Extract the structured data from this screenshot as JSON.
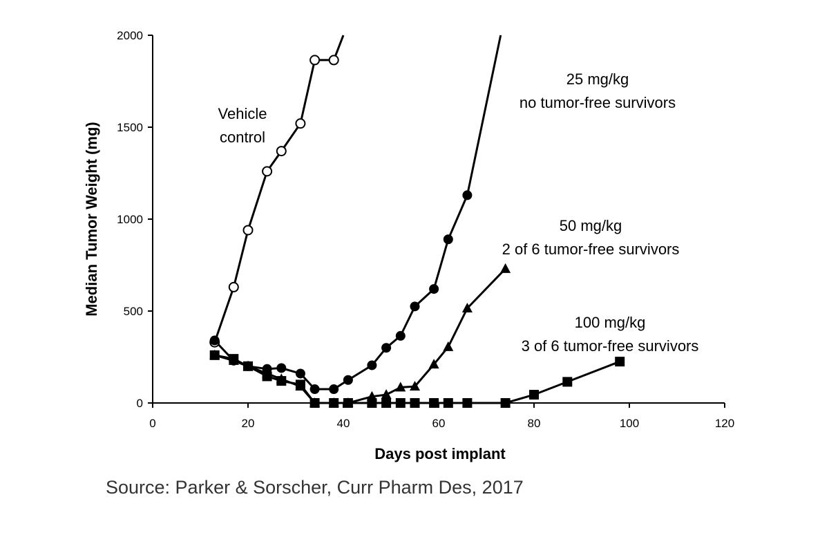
{
  "chart_data": {
    "type": "line",
    "xlabel": "Days  post implant",
    "ylabel": "Median Tumor Weight (mg)",
    "xlim": [
      0,
      120
    ],
    "ylim": [
      0,
      2000
    ],
    "xticks": [
      "0",
      "20",
      "40",
      "60",
      "80",
      "100",
      "120"
    ],
    "yticks": [
      "0",
      "500",
      "1000",
      "1500",
      "2000"
    ],
    "grid": false,
    "series": [
      {
        "marker": "open-circle",
        "x": [
          13,
          17,
          20,
          24,
          27,
          31,
          34,
          38,
          40
        ],
        "y": [
          330,
          630,
          940,
          1260,
          1370,
          1520,
          1865,
          1865,
          2000
        ]
      },
      {
        "marker": "filled-circle",
        "x": [
          13,
          17,
          20,
          24,
          27,
          31,
          34,
          38,
          41,
          46,
          49,
          52,
          55,
          59,
          62,
          66,
          73
        ],
        "y": [
          340,
          230,
          200,
          185,
          190,
          160,
          75,
          75,
          125,
          205,
          300,
          365,
          525,
          620,
          890,
          1130,
          2000
        ]
      },
      {
        "marker": "filled-triangle",
        "x": [
          13,
          17,
          20,
          24,
          27,
          31,
          34,
          38,
          41,
          46,
          49,
          52,
          55,
          59,
          62,
          66,
          74
        ],
        "y": [
          260,
          230,
          200,
          160,
          130,
          90,
          0,
          0,
          0,
          35,
          45,
          85,
          90,
          210,
          305,
          515,
          730
        ]
      },
      {
        "marker": "filled-square",
        "x": [
          13,
          17,
          20,
          24,
          27,
          31,
          34,
          38,
          41,
          46,
          49,
          52,
          55,
          59,
          62,
          66,
          74,
          80,
          87,
          98
        ],
        "y": [
          260,
          240,
          200,
          145,
          120,
          100,
          0,
          0,
          0,
          0,
          0,
          0,
          0,
          0,
          0,
          0,
          0,
          45,
          115,
          225
        ]
      }
    ],
    "annotations": [
      {
        "lines": [
          "Vehicle",
          "control"
        ]
      },
      {
        "lines": [
          "25 mg/kg",
          "no tumor-free survivors"
        ]
      },
      {
        "lines": [
          "50 mg/kg",
          "2 of 6 tumor-free survivors"
        ]
      },
      {
        "lines": [
          "100 mg/kg",
          "3 of 6 tumor-free survivors"
        ]
      }
    ]
  },
  "source": "Source: Parker & Sorscher, Curr Pharm Des, 2017"
}
